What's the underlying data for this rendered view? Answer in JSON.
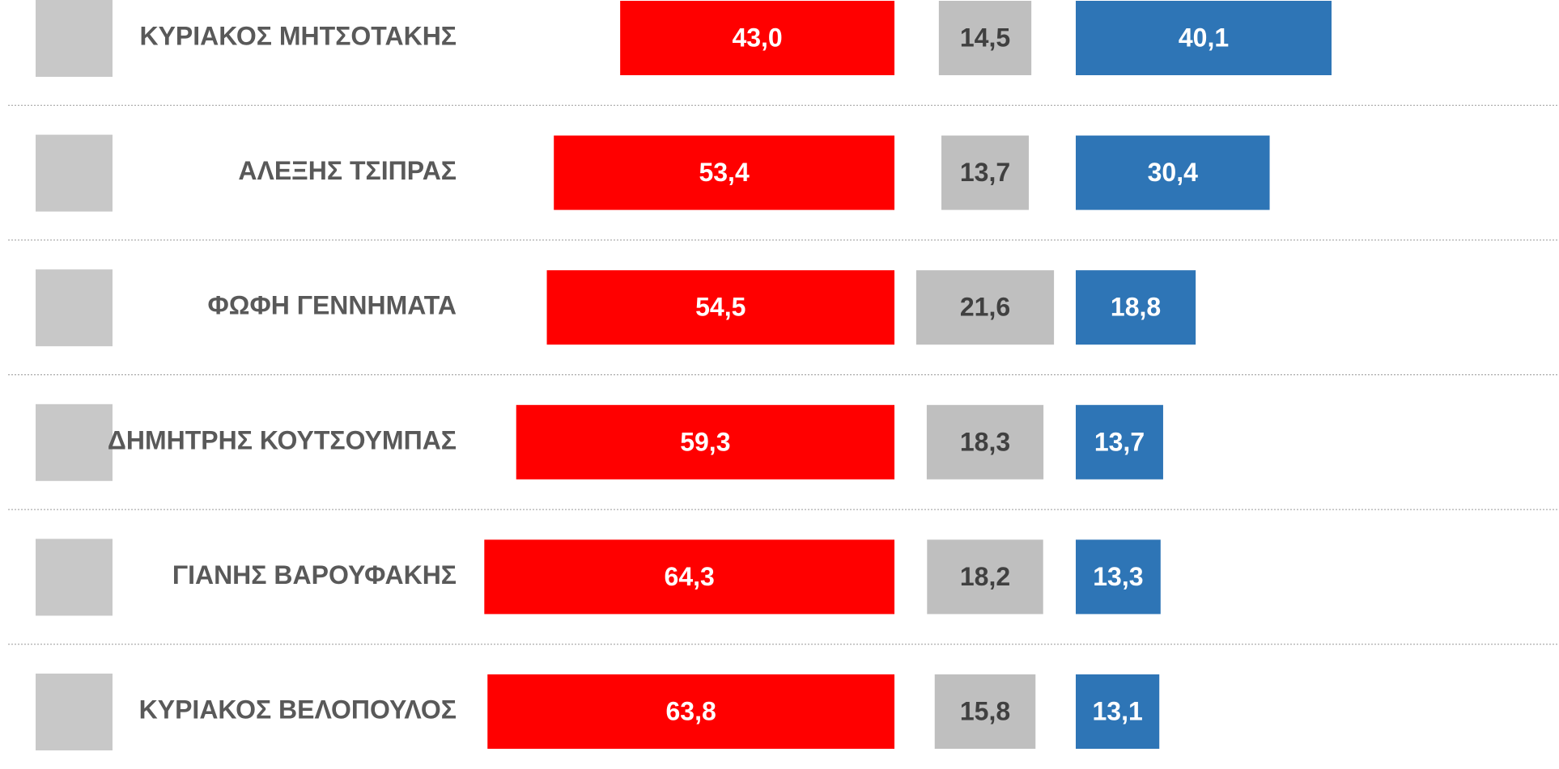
{
  "chart_data": {
    "type": "bar",
    "categories": [
      "ΚΥΡΙΑΚΟΣ ΜΗΤΣΟΤΑΚΗΣ",
      "ΑΛΕΞΗΣ ΤΣΙΠΡΑΣ",
      "ΦΩΦΗ ΓΕΝΝΗΜΑΤΑ",
      "ΔΗΜΗΤΡΗΣ ΚΟΥΤΣΟΥΜΠΑΣ",
      "ΓΙΑΝΗΣ ΒΑΡΟΥΦΑΚΗΣ",
      "ΚΥΡΙΑΚΟΣ ΒΕΛΟΠΟΥΛΟΣ"
    ],
    "series": [
      {
        "color": "#ff0000",
        "values": [
          43.0,
          53.4,
          54.5,
          59.3,
          64.3,
          63.8
        ],
        "value_labels": [
          "43,0",
          "53,4",
          "54,5",
          "59,3",
          "64,3",
          "63,8"
        ]
      },
      {
        "color": "#bfbfbf",
        "values": [
          14.5,
          13.7,
          21.6,
          18.3,
          18.2,
          15.8
        ],
        "value_labels": [
          "14,5",
          "13,7",
          "21,6",
          "18,3",
          "18,2",
          "15,8"
        ]
      },
      {
        "color": "#2e75b6",
        "values": [
          40.1,
          30.4,
          18.8,
          13.7,
          13.3,
          13.1
        ],
        "value_labels": [
          "40,1",
          "30,4",
          "18,8",
          "13,7",
          "13,3",
          "13,1"
        ]
      }
    ]
  }
}
